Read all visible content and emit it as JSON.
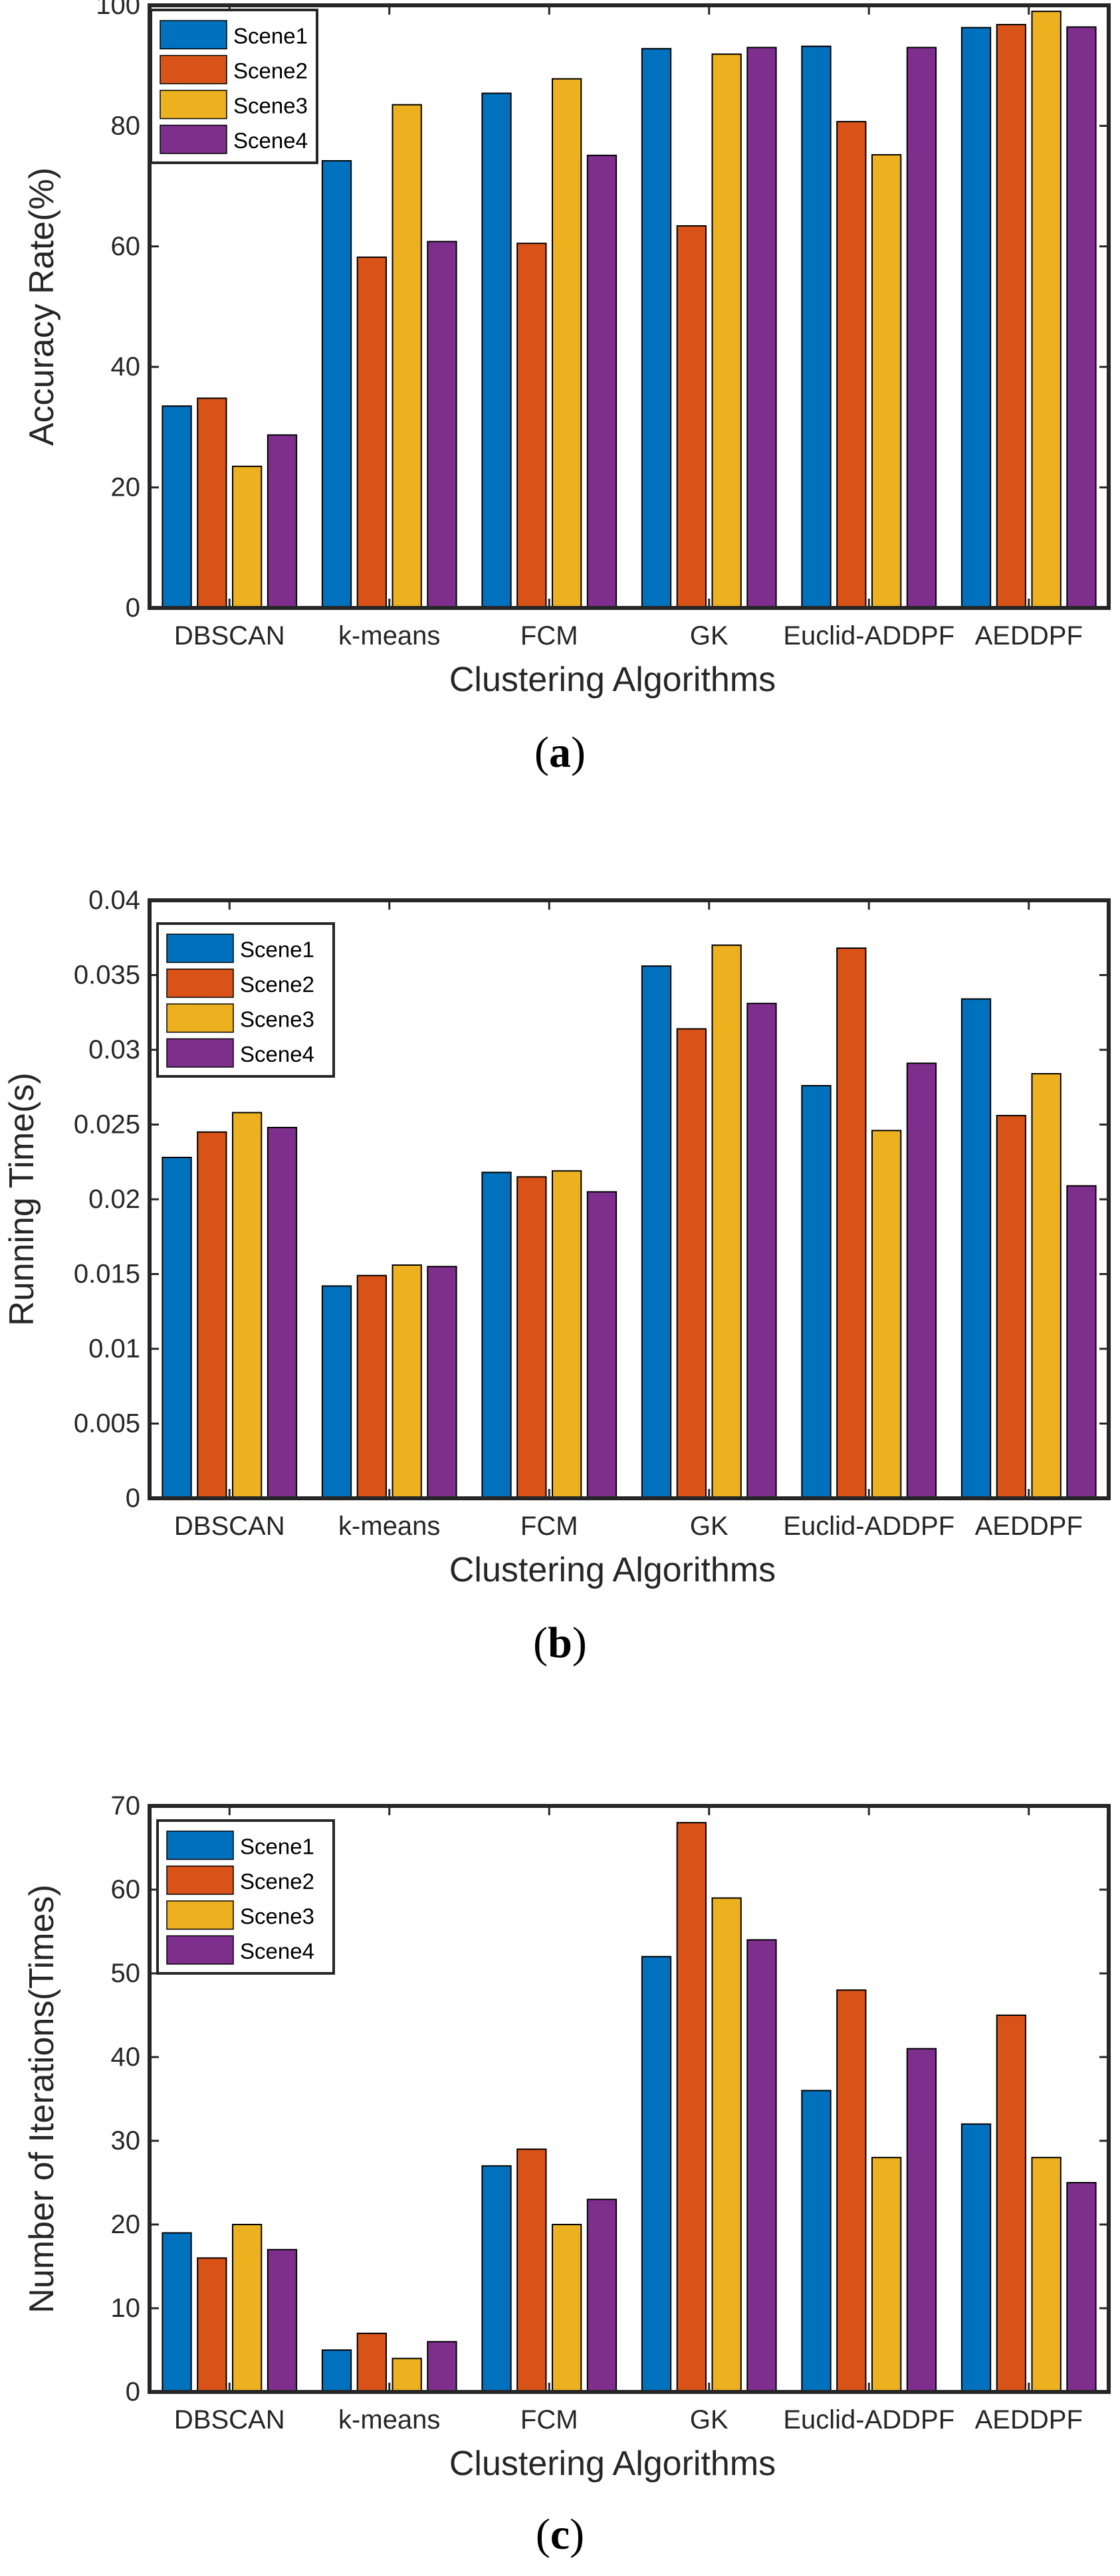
{
  "colors": {
    "Scene1": "#0072BD",
    "Scene2": "#D95319",
    "Scene3": "#EDB120",
    "Scene4": "#7E2F8E"
  },
  "chart_data": [
    {
      "type": "bar",
      "caption_letter": "a",
      "categories": [
        "DBSCAN",
        "k-means",
        "FCM",
        "GK",
        "Euclid-ADDPF",
        "AEDDPF"
      ],
      "series": [
        {
          "name": "Scene1",
          "values": [
            33.5,
            74.2,
            85.4,
            92.8,
            93.2,
            96.3
          ]
        },
        {
          "name": "Scene2",
          "values": [
            34.8,
            58.2,
            60.5,
            63.4,
            80.7,
            96.8
          ]
        },
        {
          "name": "Scene3",
          "values": [
            23.5,
            83.5,
            87.8,
            91.9,
            75.2,
            99.0
          ]
        },
        {
          "name": "Scene4",
          "values": [
            28.7,
            60.8,
            75.1,
            93.0,
            93.0,
            96.4
          ]
        }
      ],
      "xlabel": "Clustering Algorithms",
      "ylabel": "Accuracy Rate(%)",
      "ylim": [
        0,
        100
      ],
      "yticks": [
        "0",
        "20",
        "40",
        "60",
        "80",
        "100"
      ],
      "ytick_values": [
        0,
        20,
        40,
        60,
        80,
        100
      ],
      "legend": "top-left"
    },
    {
      "type": "bar",
      "caption_letter": "b",
      "categories": [
        "DBSCAN",
        "k-means",
        "FCM",
        "GK",
        "Euclid-ADDPF",
        "AEDDPF"
      ],
      "series": [
        {
          "name": "Scene1",
          "values": [
            0.0228,
            0.0142,
            0.0218,
            0.0356,
            0.0276,
            0.0334
          ]
        },
        {
          "name": "Scene2",
          "values": [
            0.0245,
            0.0149,
            0.0215,
            0.0314,
            0.0368,
            0.0256
          ]
        },
        {
          "name": "Scene3",
          "values": [
            0.0258,
            0.0156,
            0.0219,
            0.037,
            0.0246,
            0.0284
          ]
        },
        {
          "name": "Scene4",
          "values": [
            0.0248,
            0.0155,
            0.0205,
            0.0331,
            0.0291,
            0.0209
          ]
        }
      ],
      "xlabel": "Clustering Algorithms",
      "ylabel": "Running Time(s)",
      "ylim": [
        0,
        0.04
      ],
      "yticks": [
        "0",
        "0.005",
        "0.01",
        "0.015",
        "0.02",
        "0.025",
        "0.03",
        "0.035",
        "0.04"
      ],
      "ytick_values": [
        0,
        0.005,
        0.01,
        0.015,
        0.02,
        0.025,
        0.03,
        0.035,
        0.04
      ],
      "legend": "top-left"
    },
    {
      "type": "bar",
      "caption_letter": "c",
      "categories": [
        "DBSCAN",
        "k-means",
        "FCM",
        "GK",
        "Euclid-ADDPF",
        "AEDDPF"
      ],
      "series": [
        {
          "name": "Scene1",
          "values": [
            19,
            5,
            27,
            52,
            36,
            32
          ]
        },
        {
          "name": "Scene2",
          "values": [
            16,
            7,
            29,
            68,
            48,
            45
          ]
        },
        {
          "name": "Scene3",
          "values": [
            20,
            4,
            20,
            59,
            28,
            28
          ]
        },
        {
          "name": "Scene4",
          "values": [
            17,
            6,
            23,
            54,
            41,
            25
          ]
        }
      ],
      "xlabel": "Clustering Algorithms",
      "ylabel": "Number of Iterations(Times)",
      "ylim": [
        0,
        70
      ],
      "yticks": [
        "0",
        "10",
        "20",
        "30",
        "40",
        "50",
        "60",
        "70"
      ],
      "ytick_values": [
        0,
        10,
        20,
        30,
        40,
        50,
        60,
        70
      ],
      "legend": "top-left"
    }
  ]
}
